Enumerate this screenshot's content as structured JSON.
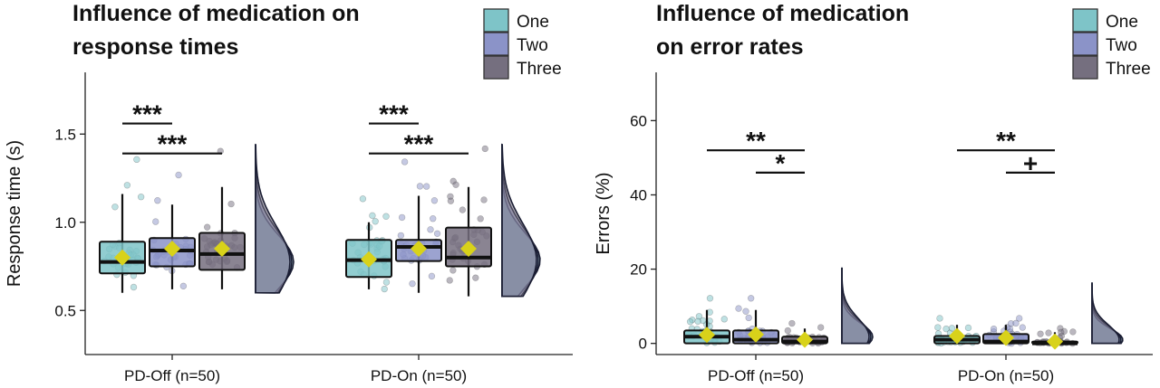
{
  "chart_data": [
    {
      "type": "box",
      "title": "Influence of medication on response times",
      "title_lines": [
        "Influence of medication on",
        "response times"
      ],
      "xlabel": "",
      "ylabel": "Response time (s)",
      "ylim": [
        0.25,
        1.85
      ],
      "yticks": [
        0.5,
        1.0,
        1.5
      ],
      "ytick_labels": [
        "0.5",
        "1.0",
        "1.5"
      ],
      "categories": [
        "PD-Off (n=50)",
        "PD-On (n=50)"
      ],
      "legend": {
        "position": "top-right",
        "entries": [
          "One",
          "Two",
          "Three"
        ]
      },
      "series": [
        {
          "name": "One",
          "color": "#7ec4c8",
          "boxes": [
            {
              "whisker_low": 0.6,
              "q1": 0.71,
              "median": 0.775,
              "q3": 0.89,
              "whisker_high": 1.16,
              "mean": 0.8
            },
            {
              "whisker_low": 0.62,
              "q1": 0.69,
              "median": 0.785,
              "q3": 0.9,
              "whisker_high": 1.0,
              "mean": 0.79
            }
          ]
        },
        {
          "name": "Two",
          "color": "#8b93c8",
          "boxes": [
            {
              "whisker_low": 0.62,
              "q1": 0.75,
              "median": 0.84,
              "q3": 0.91,
              "whisker_high": 1.1,
              "mean": 0.85
            },
            {
              "whisker_low": 0.6,
              "q1": 0.78,
              "median": 0.86,
              "q3": 0.9,
              "whisker_high": 1.15,
              "mean": 0.85
            }
          ]
        },
        {
          "name": "Three",
          "color": "#756f7f",
          "boxes": [
            {
              "whisker_low": 0.62,
              "q1": 0.73,
              "median": 0.82,
              "q3": 0.94,
              "whisker_high": 1.2,
              "mean": 0.85
            },
            {
              "whisker_low": 0.58,
              "q1": 0.75,
              "median": 0.8,
              "q3": 0.97,
              "whisker_high": 1.2,
              "mean": 0.85
            }
          ]
        }
      ],
      "significance": [
        {
          "group": 0,
          "from": "One",
          "to": "Two",
          "label": "***",
          "level": 1.56
        },
        {
          "group": 0,
          "from": "One",
          "to": "Three",
          "label": "***",
          "level": 1.39
        },
        {
          "group": 1,
          "from": "One",
          "to": "Two",
          "label": "***",
          "level": 1.56
        },
        {
          "group": 1,
          "from": "One",
          "to": "Three",
          "label": "***",
          "level": 1.39
        }
      ],
      "grid": false
    },
    {
      "type": "box",
      "title": "Influence of medication on error rates",
      "title_lines": [
        "Influence of medication",
        "on error rates"
      ],
      "xlabel": "",
      "ylabel": "Errors (%)",
      "ylim": [
        -3,
        73
      ],
      "yticks": [
        0,
        20,
        40,
        60
      ],
      "ytick_labels": [
        "0",
        "20",
        "40",
        "60"
      ],
      "categories": [
        "PD-Off (n=50)",
        "PD-On (n=50)"
      ],
      "legend": {
        "position": "top-right",
        "entries": [
          "One",
          "Two",
          "Three"
        ]
      },
      "series": [
        {
          "name": "One",
          "color": "#7ec4c8",
          "boxes": [
            {
              "whisker_low": 0,
              "q1": 0,
              "median": 1.8,
              "q3": 3.5,
              "whisker_high": 9,
              "mean": 2.3
            },
            {
              "whisker_low": 0,
              "q1": 0,
              "median": 1.0,
              "q3": 2.0,
              "whisker_high": 5,
              "mean": 2.0
            }
          ]
        },
        {
          "name": "Two",
          "color": "#8b93c8",
          "boxes": [
            {
              "whisker_low": 0,
              "q1": 0,
              "median": 1.0,
              "q3": 3.5,
              "whisker_high": 9,
              "mean": 2.4
            },
            {
              "whisker_low": 0,
              "q1": 0,
              "median": 0.5,
              "q3": 2.5,
              "whisker_high": 5,
              "mean": 1.5
            }
          ]
        },
        {
          "name": "Three",
          "color": "#756f7f",
          "boxes": [
            {
              "whisker_low": 0,
              "q1": 0,
              "median": 0.5,
              "q3": 1.8,
              "whisker_high": 4,
              "mean": 1.0
            },
            {
              "whisker_low": 0,
              "q1": 0,
              "median": 0.0,
              "q3": 0.5,
              "whisker_high": 3,
              "mean": 0.5
            }
          ]
        }
      ],
      "significance": [
        {
          "group": 0,
          "from": "One",
          "to": "Three",
          "label": "**",
          "level": 52
        },
        {
          "group": 0,
          "from": "Two",
          "to": "Three",
          "label": "*",
          "level": 46
        },
        {
          "group": 1,
          "from": "One",
          "to": "Three",
          "label": "**",
          "level": 52
        },
        {
          "group": 1,
          "from": "Two",
          "to": "Three",
          "label": "+",
          "level": 46
        }
      ],
      "grid": false
    }
  ]
}
